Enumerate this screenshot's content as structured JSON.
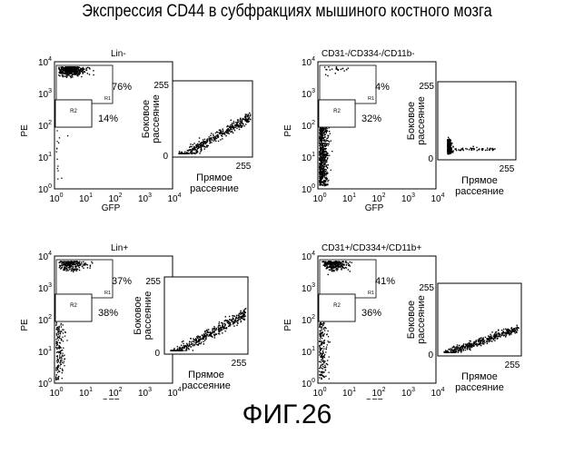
{
  "title": "Экспрессия CD44 в субфракциях мышиного костного мозга",
  "figure_label": "ФИГ.26",
  "main_axes": {
    "xlabel": "GFP",
    "ylabel": "PE",
    "exponent_base": "10",
    "exponents": [
      "0",
      "1",
      "2",
      "3",
      "4"
    ]
  },
  "inset_axes": {
    "xlabel_line1": "Прямое",
    "xlabel_line2": "рассеяние",
    "ylabel_line1": "Боковое",
    "ylabel_line2": "рассеяние",
    "axis_min": "0",
    "axis_max": "255"
  },
  "gate_r1_label": "R1",
  "gate_r2_label": "R2",
  "panels": [
    {
      "label": "Lin-",
      "gate_r1_percent": "76%",
      "gate_r2_percent": "14%",
      "inset_pattern": "broad-diagonal-cloud"
    },
    {
      "label": "CD31-/CD334-/CD11b-",
      "gate_r1_percent": "4%",
      "gate_r2_percent": "32%",
      "inset_pattern": "narrow-low-cluster"
    },
    {
      "label": "Lin+",
      "gate_r1_percent": "37%",
      "gate_r2_percent": "38%",
      "inset_pattern": "diagonal-cloud"
    },
    {
      "label": "CD31+/CD334+/CD11b+",
      "gate_r1_percent": "41%",
      "gate_r2_percent": "36%",
      "inset_pattern": "low-right-cloud"
    }
  ]
}
